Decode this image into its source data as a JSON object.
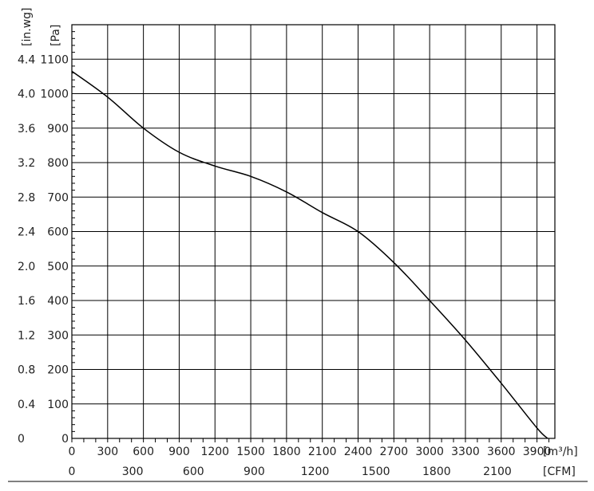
{
  "chart_data": {
    "type": "line",
    "ylabel_pa": "[Pa]",
    "ylabel_inwg": "[in.wg]",
    "xlabel_m3h": "[m³/h]",
    "xlabel_cfm": "[CFM]",
    "grid": true,
    "x_m3h_range": [
      0,
      4050
    ],
    "y_pa_range": [
      0,
      1200
    ],
    "x_ticks_m3h": [
      "0",
      "300",
      "600",
      "900",
      "1200",
      "1500",
      "1800",
      "2100",
      "2400",
      "2700",
      "3000",
      "3300",
      "3600",
      "3900"
    ],
    "x_tick_values_m3h": [
      0,
      300,
      600,
      900,
      1200,
      1500,
      1800,
      2100,
      2400,
      2700,
      3000,
      3300,
      3600,
      3900
    ],
    "x_ticks_cfm": [
      "0",
      "300",
      "600",
      "900",
      "1200",
      "1500",
      "1800",
      "2100"
    ],
    "x_tick_values_cfm": [
      0,
      300,
      600,
      900,
      1200,
      1500,
      1800,
      2100
    ],
    "y_ticks_pa": [
      "0",
      "100",
      "200",
      "300",
      "400",
      "500",
      "600",
      "700",
      "800",
      "900",
      "1000",
      "1100"
    ],
    "y_tick_values_pa": [
      0,
      100,
      200,
      300,
      400,
      500,
      600,
      700,
      800,
      900,
      1000,
      1100
    ],
    "y_ticks_inwg": [
      "0",
      "0.4",
      "0.8",
      "1.2",
      "1.6",
      "2.0",
      "2.4",
      "2.8",
      "3.2",
      "3.6",
      "4.0",
      "4.4"
    ],
    "series": [
      {
        "x": [
          0,
          300,
          600,
          900,
          1200,
          1500,
          1800,
          2100,
          2400,
          2700,
          3000,
          3300,
          3600,
          3900,
          3990
        ],
        "y": [
          1065,
          990,
          900,
          830,
          790,
          760,
          715,
          655,
          600,
          510,
          400,
          285,
          160,
          30,
          0
        ]
      }
    ]
  }
}
